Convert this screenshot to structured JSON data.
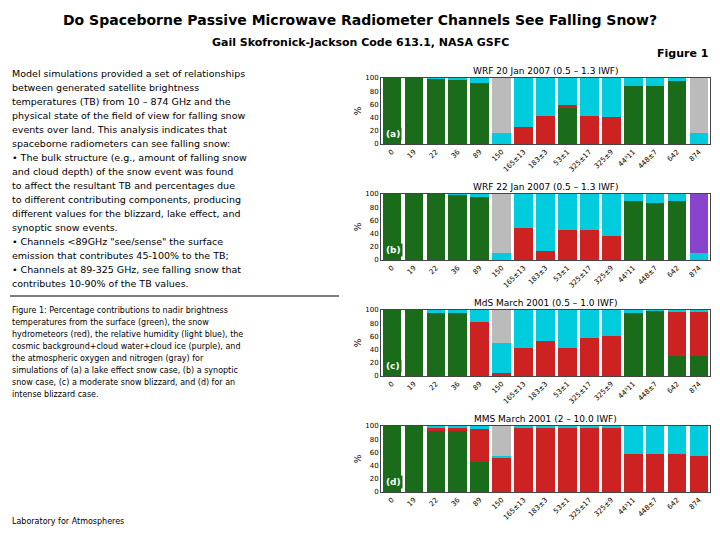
{
  "title": "Do Spaceborne Passive Microwave Radiometer Channels See Falling Snow?",
  "subtitle": "Gail Skofronick-Jackson Code 613.1, NASA GSFC",
  "figure_label": "Figure 1",
  "annotations": [
    [
      "Model simulations provided a set of relationships",
      "between generated satellite brightness",
      "temperatures (TB) from 10 – 874 GHz and the",
      "physical state of the field of view for falling snow",
      "events over land. This analysis indicates that",
      "spaceborne radiometers can see falling snow:",
      "• The bulk structure (e.g., amount of falling snow",
      "and cloud depth) of the snow event was found",
      "to affect the resultant TB and percentages due",
      "to different contributing components, producing",
      "different values for the blizzard, lake effect, and",
      "synoptic snow events.",
      "• Channels <89GHz \"see/sense\" the surface",
      "emission that contributes 45-100% to the TB;",
      "• Channels at 89-325 GHz, see falling snow that",
      "contributes 10-90% of the TB values."
    ],
    [
      "Figure 1: Percentage contributions to nadir brightness",
      "temperatures from the surface (green), the snow",
      "hydrometeors (red), the relative humidity (light blue), the",
      "cosmic background+cloud water+cloud ice (purple), and",
      "the atmospheric oxygen and nitrogen (gray) for",
      "simulations of (a) a lake effect snow case, (b) a synoptic",
      "snow case, (c) a moderate snow blizzard, and (d) for an",
      "intense blizzard case."
    ],
    [
      "Laboratory for Atmospheres"
    ]
  ],
  "chart_data": [
    {
      "type": "bar",
      "stacked": true,
      "title": "WRF 20 Jan 2007 (0.5 – 1.3 IWF)",
      "annotations": [
        "(a)"
      ],
      "ylabel": "%",
      "categories": [
        "0",
        "19",
        "22",
        "36",
        "89",
        "150",
        "165±13",
        "183±3",
        "53±1",
        "325±17",
        "325±9",
        "44³11",
        "448±7",
        "642",
        "874"
      ],
      "series": [
        {
          "color": "#1a6b1a",
          "values": [
            100,
            100,
            99,
            98,
            92,
            0,
            0,
            0,
            55,
            0,
            0,
            88,
            88,
            95,
            0
          ]
        },
        {
          "color": "#cc2222",
          "values": [
            0,
            0,
            0,
            0,
            0,
            0,
            26,
            43,
            4,
            43,
            41,
            0,
            0,
            0,
            0
          ]
        },
        {
          "color": "#00ccdd",
          "values": [
            0,
            0,
            1,
            2,
            8,
            17,
            74,
            57,
            41,
            57,
            59,
            12,
            12,
            5,
            17
          ]
        },
        {
          "color": "#8844cc",
          "values": [
            0,
            0,
            0,
            0,
            0,
            0,
            0,
            0,
            0,
            0,
            0,
            0,
            0,
            0,
            0
          ]
        },
        {
          "color": "#bbbbbb",
          "values": [
            0,
            0,
            0,
            0,
            0,
            83,
            0,
            0,
            0,
            0,
            0,
            0,
            0,
            0,
            83
          ]
        }
      ],
      "ylim": [
        0,
        100
      ],
      "yticks": [
        0,
        20,
        40,
        60,
        80,
        100
      ],
      "grid": false
    },
    {
      "type": "bar",
      "stacked": true,
      "title": "WRF 22 Jan 2007 (0.5 – 1.3 IWF)",
      "annotations": [
        "(b)"
      ],
      "ylabel": "%",
      "categories": [
        "0",
        "19",
        "22",
        "36",
        "89",
        "150",
        "165±13",
        "183±3",
        "53±1",
        "325±17",
        "325±9",
        "44³11",
        "448±7",
        "642",
        "874"
      ],
      "series": [
        {
          "color": "#1a6b1a",
          "values": [
            100,
            100,
            100,
            99,
            96,
            0,
            0,
            0,
            0,
            0,
            0,
            90,
            87,
            90,
            0
          ]
        },
        {
          "color": "#cc2222",
          "values": [
            0,
            0,
            0,
            0,
            0,
            0,
            48,
            13,
            45,
            45,
            36,
            0,
            0,
            0,
            0
          ]
        },
        {
          "color": "#00ccdd",
          "values": [
            0,
            0,
            0,
            1,
            4,
            10,
            52,
            87,
            55,
            55,
            64,
            10,
            13,
            10,
            10
          ]
        },
        {
          "color": "#8844cc",
          "values": [
            0,
            0,
            0,
            0,
            0,
            0,
            0,
            0,
            0,
            0,
            0,
            0,
            0,
            0,
            90
          ]
        },
        {
          "color": "#bbbbbb",
          "values": [
            0,
            0,
            0,
            0,
            0,
            90,
            0,
            0,
            0,
            0,
            0,
            0,
            0,
            0,
            0
          ]
        }
      ],
      "ylim": [
        0,
        100
      ],
      "yticks": [
        0,
        20,
        40,
        60,
        80,
        100
      ],
      "grid": false
    },
    {
      "type": "bar",
      "stacked": true,
      "title": "MdS March 2001 (0.5 – 1.0 IWF)",
      "annotations": [
        "(c)"
      ],
      "ylabel": "%",
      "categories": [
        "0",
        "19",
        "22",
        "36",
        "89",
        "150",
        "165±13",
        "183±3",
        "53±1",
        "325±17",
        "325±9",
        "44³11",
        "448±7",
        "642",
        "874"
      ],
      "series": [
        {
          "color": "#1a6b1a",
          "values": [
            100,
            100,
            96,
            95,
            0,
            0,
            0,
            0,
            0,
            0,
            0,
            95,
            99,
            30,
            30
          ]
        },
        {
          "color": "#cc2222",
          "values": [
            0,
            0,
            0,
            0,
            82,
            5,
            42,
            53,
            42,
            58,
            60,
            0,
            0,
            68,
            68
          ]
        },
        {
          "color": "#00ccdd",
          "values": [
            0,
            0,
            4,
            5,
            18,
            45,
            58,
            47,
            58,
            42,
            40,
            5,
            1,
            2,
            2
          ]
        },
        {
          "color": "#8844cc",
          "values": [
            0,
            0,
            0,
            0,
            0,
            0,
            0,
            0,
            0,
            0,
            0,
            0,
            0,
            0,
            0
          ]
        },
        {
          "color": "#bbbbbb",
          "values": [
            0,
            0,
            0,
            0,
            0,
            50,
            0,
            0,
            0,
            0,
            0,
            0,
            0,
            0,
            0
          ]
        }
      ],
      "ylim": [
        0,
        100
      ],
      "yticks": [
        0,
        20,
        40,
        60,
        80,
        100
      ],
      "grid": false
    },
    {
      "type": "bar",
      "stacked": true,
      "title": "MMS March 2001 (2 – 10.0 IWF)",
      "annotations": [
        "(d)"
      ],
      "ylabel": "%",
      "categories": [
        "0",
        "19",
        "22",
        "36",
        "89",
        "150",
        "165±13",
        "183±3",
        "53±1",
        "325±17",
        "325±9",
        "44³11",
        "448±7",
        "642",
        "874"
      ],
      "series": [
        {
          "color": "#1a6b1a",
          "values": [
            100,
            100,
            93,
            92,
            45,
            0,
            0,
            0,
            0,
            0,
            0,
            0,
            0,
            0,
            0
          ]
        },
        {
          "color": "#cc2222",
          "values": [
            0,
            0,
            4,
            5,
            50,
            52,
            98,
            97,
            98,
            98,
            97,
            58,
            58,
            58,
            55
          ]
        },
        {
          "color": "#00ccdd",
          "values": [
            0,
            0,
            3,
            3,
            5,
            3,
            2,
            3,
            2,
            2,
            3,
            42,
            42,
            42,
            45
          ]
        },
        {
          "color": "#8844cc",
          "values": [
            0,
            0,
            0,
            0,
            0,
            0,
            0,
            0,
            0,
            0,
            0,
            0,
            0,
            0,
            0
          ]
        },
        {
          "color": "#bbbbbb",
          "values": [
            0,
            0,
            0,
            0,
            0,
            45,
            0,
            0,
            0,
            0,
            0,
            0,
            0,
            0,
            0
          ]
        }
      ],
      "ylim": [
        0,
        100
      ],
      "yticks": [
        0,
        20,
        40,
        60,
        80,
        100
      ],
      "grid": false
    }
  ]
}
